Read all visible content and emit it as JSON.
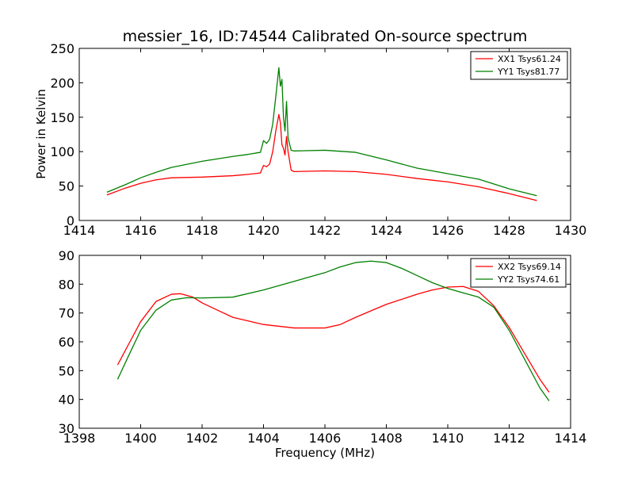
{
  "chart_data": [
    {
      "type": "line",
      "title": "messier_16, ID:74544 Calibrated On-source spectrum",
      "xlabel": "",
      "ylabel": "Power in Kelvin",
      "xlim": [
        1414,
        1430
      ],
      "ylim": [
        0,
        250
      ],
      "xticks": [
        1414,
        1416,
        1418,
        1420,
        1422,
        1424,
        1426,
        1428,
        1430
      ],
      "yticks": [
        0,
        50,
        100,
        150,
        200,
        250
      ],
      "legend_position": "top-right",
      "series": [
        {
          "name": "XX1 Tsys61.24",
          "color": "#ff0000",
          "x": [
            1414.9,
            1415.5,
            1416.0,
            1416.5,
            1417.0,
            1418.0,
            1419.0,
            1419.5,
            1419.9,
            1420.0,
            1420.1,
            1420.2,
            1420.3,
            1420.4,
            1420.5,
            1420.55,
            1420.6,
            1420.65,
            1420.7,
            1420.75,
            1420.8,
            1420.9,
            1421.0,
            1422.0,
            1423.0,
            1424.0,
            1425.0,
            1426.0,
            1427.0,
            1428.0,
            1428.9
          ],
          "y": [
            37,
            47,
            54,
            59,
            62,
            63,
            65,
            67,
            69,
            80,
            78,
            82,
            100,
            130,
            154,
            142,
            110,
            105,
            95,
            122,
            100,
            73,
            71,
            72,
            71,
            67,
            61,
            56,
            49,
            39,
            29
          ]
        },
        {
          "name": "YY1 Tsys81.77",
          "color": "#008000",
          "x": [
            1414.9,
            1415.5,
            1416.0,
            1416.5,
            1417.0,
            1418.0,
            1419.0,
            1419.5,
            1419.9,
            1420.0,
            1420.1,
            1420.2,
            1420.3,
            1420.4,
            1420.5,
            1420.55,
            1420.6,
            1420.65,
            1420.7,
            1420.75,
            1420.8,
            1420.9,
            1421.0,
            1422.0,
            1423.0,
            1424.0,
            1425.0,
            1426.0,
            1427.0,
            1428.0,
            1428.9
          ],
          "y": [
            41,
            52,
            62,
            70,
            77,
            86,
            93,
            96,
            99,
            116,
            112,
            118,
            140,
            180,
            222,
            195,
            205,
            150,
            130,
            173,
            120,
            102,
            101,
            102,
            99,
            88,
            76,
            68,
            60,
            46,
            36
          ]
        }
      ]
    },
    {
      "type": "line",
      "title": "",
      "xlabel": "Frequency (MHz)",
      "ylabel": "",
      "xlim": [
        1398,
        1414
      ],
      "ylim": [
        30,
        90
      ],
      "xticks": [
        1398,
        1400,
        1402,
        1404,
        1406,
        1408,
        1410,
        1412,
        1414
      ],
      "yticks": [
        30,
        40,
        50,
        60,
        70,
        80,
        90
      ],
      "legend_position": "top-right",
      "series": [
        {
          "name": "XX2 Tsys69.14",
          "color": "#ff0000",
          "x": [
            1399.25,
            1399.6,
            1400.0,
            1400.5,
            1401.0,
            1401.3,
            1401.7,
            1402.0,
            1402.5,
            1403.0,
            1404.0,
            1405.0,
            1406.0,
            1406.5,
            1407.0,
            1408.0,
            1409.0,
            1409.5,
            1410.0,
            1410.5,
            1411.0,
            1411.5,
            1412.0,
            1412.5,
            1413.0,
            1413.3
          ],
          "y": [
            52,
            59,
            67,
            74,
            76.5,
            76.7,
            75.5,
            73.5,
            71,
            68.5,
            66,
            64.8,
            64.8,
            66,
            68.5,
            73,
            76.5,
            78,
            79,
            79.2,
            77.5,
            72.5,
            65,
            56,
            47,
            42.5
          ]
        },
        {
          "name": "YY2 Tsys74.61",
          "color": "#008000",
          "x": [
            1399.25,
            1399.6,
            1400.0,
            1400.5,
            1401.0,
            1401.5,
            1402.0,
            1403.0,
            1404.0,
            1405.0,
            1406.0,
            1406.5,
            1407.0,
            1407.5,
            1408.0,
            1408.5,
            1409.0,
            1409.5,
            1410.0,
            1410.5,
            1411.0,
            1411.5,
            1412.0,
            1412.5,
            1413.0,
            1413.3
          ],
          "y": [
            47,
            55,
            64,
            71,
            74.5,
            75.3,
            75.2,
            75.5,
            78,
            81,
            84,
            86,
            87.5,
            88,
            87.5,
            85.5,
            83,
            80.5,
            78.5,
            77,
            75.5,
            72,
            64,
            54,
            44,
            39.5
          ]
        }
      ]
    }
  ]
}
